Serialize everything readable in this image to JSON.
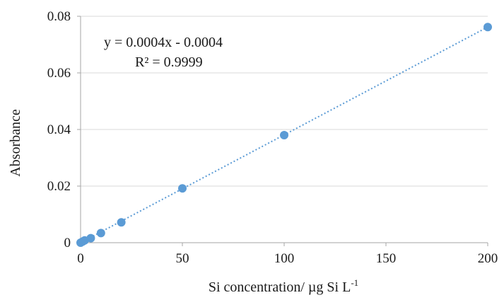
{
  "chart_data": {
    "type": "scatter",
    "xlabel": "Si concentration/ µg Si L",
    "xlabel_superscript": "-1",
    "ylabel": "Absorbance",
    "xlim": [
      0,
      200
    ],
    "ylim": [
      0,
      0.08
    ],
    "x_ticks": [
      0,
      50,
      100,
      150,
      200
    ],
    "y_ticks": [
      0,
      0.02,
      0.04,
      0.06,
      0.08
    ],
    "x_tick_labels": [
      "0",
      "50",
      "100",
      "150",
      "200"
    ],
    "y_tick_labels": [
      "0",
      "0.02",
      "0.04",
      "0.06",
      "0.08"
    ],
    "grid": "horizontal",
    "legend": "none",
    "series": [
      {
        "x": [
          0,
          1,
          2,
          5,
          10,
          20,
          50,
          100,
          200
        ],
        "y": [
          0,
          0.0004,
          0.0008,
          0.0016,
          0.0034,
          0.0072,
          0.0192,
          0.038,
          0.0762
        ],
        "color": "#5b9bd5",
        "marker": "circle"
      }
    ],
    "trendline": {
      "kind": "linear",
      "style": "dotted",
      "color": "#5b9bd5",
      "slope": 0.0004,
      "intercept": -0.0004,
      "x_range": [
        0,
        200
      ],
      "equation": "y = 0.0004x - 0.0004",
      "r_squared": "R² = 0.9999"
    }
  }
}
